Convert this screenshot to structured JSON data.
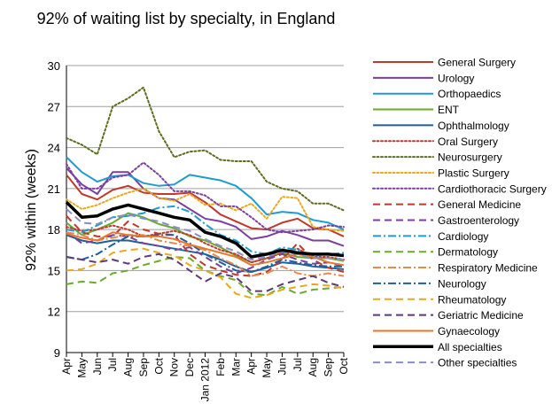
{
  "chart_data": {
    "type": "line",
    "title": "92% of waiting list by specialty, in England",
    "ylabel": "92% within (weeks)",
    "xlabel": "",
    "ylim": [
      9,
      30
    ],
    "yticks": [
      9,
      12,
      15,
      18,
      21,
      24,
      27,
      30
    ],
    "grid": "horizontal",
    "legend_position": "right",
    "categories": [
      "Apr",
      "May",
      "Jun",
      "Jul",
      "Aug",
      "Sep",
      "Oct",
      "Nov",
      "Dec",
      "Jan 2012",
      "Feb",
      "Mar",
      "Apr",
      "May",
      "Jun",
      "Jul",
      "Aug",
      "Sep",
      "Oct"
    ],
    "series": [
      {
        "name": "General Surgery",
        "color": "#c0392b",
        "style": "solid",
        "width": 2,
        "values": [
          22.0,
          20.6,
          20.2,
          20.9,
          21.2,
          20.7,
          20.6,
          20.6,
          20.7,
          20.0,
          19.1,
          18.6,
          18.1,
          18.0,
          18.5,
          18.8,
          18.1,
          18.0,
          17.5
        ]
      },
      {
        "name": "Urology",
        "color": "#7b3f9e",
        "style": "solid",
        "width": 2,
        "values": [
          22.5,
          21.3,
          20.6,
          22.2,
          22.2,
          21.0,
          20.3,
          20.2,
          19.5,
          18.8,
          18.6,
          18.2,
          17.3,
          17.5,
          17.9,
          17.6,
          17.2,
          17.2,
          16.8
        ]
      },
      {
        "name": "Orthopaedics",
        "color": "#1f9bd1",
        "style": "solid",
        "width": 2,
        "values": [
          23.3,
          22.2,
          21.5,
          21.9,
          22.0,
          21.4,
          21.2,
          21.3,
          22.0,
          21.8,
          21.6,
          21.2,
          20.3,
          19.1,
          19.3,
          19.2,
          18.7,
          18.5,
          18.0
        ]
      },
      {
        "name": "ENT",
        "color": "#6aaa2e",
        "style": "solid",
        "width": 2,
        "values": [
          18.5,
          17.6,
          18.0,
          18.5,
          19.2,
          18.9,
          18.4,
          18.1,
          17.5,
          17.2,
          16.7,
          16.1,
          15.6,
          15.9,
          16.3,
          16.0,
          15.9,
          15.9,
          15.7
        ]
      },
      {
        "name": "Ophthalmology",
        "color": "#1f5f9e",
        "style": "solid",
        "width": 2,
        "values": [
          17.6,
          17.2,
          17.0,
          17.2,
          17.2,
          17.0,
          16.8,
          16.6,
          16.4,
          16.2,
          15.8,
          15.3,
          14.9,
          15.2,
          15.6,
          15.5,
          15.3,
          15.2,
          15.1
        ]
      },
      {
        "name": "Oral Surgery",
        "color": "#c0392b",
        "style": "dot",
        "width": 2,
        "values": [
          18.2,
          17.9,
          18.0,
          18.3,
          18.0,
          17.5,
          17.7,
          17.9,
          17.6,
          17.0,
          16.5,
          16.2,
          15.6,
          15.9,
          16.3,
          16.6,
          16.0,
          16.0,
          15.8
        ]
      },
      {
        "name": "Neurosurgery",
        "color": "#5a6e1f",
        "style": "dot",
        "width": 2,
        "values": [
          24.7,
          24.2,
          23.5,
          27.0,
          27.6,
          28.4,
          25.2,
          23.3,
          23.7,
          23.8,
          23.1,
          23.0,
          23.0,
          21.5,
          21.0,
          20.8,
          19.9,
          19.9,
          19.4
        ]
      },
      {
        "name": "Plastic Surgery",
        "color": "#e8a91e",
        "style": "dot",
        "width": 2,
        "values": [
          20.2,
          19.5,
          19.8,
          20.3,
          20.7,
          21.0,
          20.3,
          20.1,
          20.6,
          19.8,
          19.9,
          19.4,
          19.9,
          18.8,
          20.4,
          20.3,
          18.2,
          18.0,
          17.9
        ]
      },
      {
        "name": "Cardiothoracic Surgery",
        "color": "#7b3f9e",
        "style": "dot",
        "width": 2,
        "values": [
          22.8,
          21.0,
          21.0,
          21.8,
          22.0,
          22.9,
          22.0,
          20.8,
          20.8,
          20.5,
          19.7,
          19.7,
          18.9,
          18.0,
          17.8,
          17.9,
          18.0,
          18.3,
          18.2
        ]
      },
      {
        "name": "General Medicine",
        "color": "#c0392b",
        "style": "longdash",
        "width": 2,
        "values": [
          19.0,
          17.8,
          17.5,
          17.5,
          18.6,
          18.0,
          17.7,
          17.6,
          16.2,
          15.4,
          15.0,
          14.7,
          14.6,
          14.9,
          15.8,
          17.0,
          15.8,
          15.2,
          14.9
        ]
      },
      {
        "name": "Gastroenterology",
        "color": "#7b3f9e",
        "style": "longdash",
        "width": 2,
        "values": [
          17.8,
          17.0,
          17.2,
          17.6,
          17.5,
          17.0,
          16.8,
          16.5,
          16.7,
          16.0,
          15.3,
          14.8,
          15.2,
          15.8,
          16.2,
          15.8,
          15.5,
          15.6,
          15.3
        ]
      },
      {
        "name": "Cardiology",
        "color": "#1f9bd1",
        "style": "dashdot",
        "width": 2,
        "values": [
          18.0,
          17.8,
          18.3,
          18.9,
          19.0,
          19.2,
          19.6,
          19.7,
          19.3,
          18.4,
          17.6,
          17.2,
          16.4,
          16.2,
          16.7,
          16.5,
          16.1,
          16.2,
          16.3
        ]
      },
      {
        "name": "Dermatology",
        "color": "#6aaa2e",
        "style": "longdash",
        "width": 2,
        "values": [
          14.0,
          14.2,
          14.1,
          14.8,
          15.0,
          15.4,
          15.7,
          16.0,
          15.9,
          15.0,
          14.6,
          14.3,
          13.3,
          13.2,
          13.8,
          13.3,
          13.6,
          13.7,
          13.8
        ]
      },
      {
        "name": "Respiratory Medicine",
        "color": "#e68a4f",
        "style": "dashdot",
        "width": 2,
        "values": [
          17.8,
          17.6,
          17.2,
          17.4,
          17.6,
          17.6,
          17.2,
          17.0,
          16.8,
          16.5,
          15.9,
          15.4,
          14.6,
          14.8,
          15.3,
          14.8,
          14.6,
          14.8,
          14.6
        ]
      },
      {
        "name": "Neurology",
        "color": "#1f5f9e",
        "style": "dashdot",
        "width": 2,
        "values": [
          16.0,
          15.8,
          16.2,
          16.9,
          17.5,
          17.5,
          17.6,
          17.6,
          17.0,
          16.2,
          15.6,
          15.0,
          14.9,
          15.3,
          15.8,
          15.6,
          15.4,
          15.3,
          15.3
        ]
      },
      {
        "name": "Rheumatology",
        "color": "#e8a91e",
        "style": "longdash",
        "width": 2,
        "values": [
          15.0,
          15.1,
          15.5,
          16.3,
          16.5,
          16.6,
          16.3,
          16.1,
          15.4,
          15.0,
          14.5,
          13.3,
          13.0,
          13.2,
          13.6,
          13.8,
          14.0,
          13.9,
          13.7
        ]
      },
      {
        "name": "Geriatric Medicine",
        "color": "#5b3a78",
        "style": "longdash",
        "width": 2,
        "values": [
          16.0,
          15.8,
          15.6,
          15.8,
          15.5,
          16.0,
          16.2,
          15.8,
          15.0,
          14.2,
          14.8,
          14.5,
          13.5,
          13.5,
          14.0,
          14.3,
          14.6,
          14.1,
          13.8
        ]
      },
      {
        "name": "Gynaecology",
        "color": "#e8762b",
        "style": "solid",
        "width": 2,
        "values": [
          17.7,
          17.4,
          17.2,
          17.8,
          17.6,
          17.5,
          17.5,
          17.3,
          16.9,
          16.6,
          16.3,
          16.0,
          15.4,
          15.6,
          15.9,
          16.2,
          16.0,
          15.6,
          15.4
        ]
      },
      {
        "name": "All specialties",
        "color": "#000000",
        "style": "solid",
        "width": 3.5,
        "values": [
          20.0,
          18.9,
          19.0,
          19.5,
          19.8,
          19.5,
          19.2,
          18.9,
          18.7,
          17.8,
          17.5,
          17.0,
          16.0,
          16.2,
          16.5,
          16.3,
          16.2,
          16.2,
          16.1
        ]
      },
      {
        "name": "Other specialties",
        "color": "#8c8cc8",
        "style": "longdash",
        "width": 2,
        "values": [
          19.5,
          18.5,
          18.4,
          18.9,
          19.1,
          18.8,
          18.6,
          18.2,
          17.9,
          17.3,
          16.8,
          16.4,
          15.8,
          16.0,
          16.4,
          16.2,
          15.9,
          15.9,
          15.8
        ]
      }
    ]
  }
}
